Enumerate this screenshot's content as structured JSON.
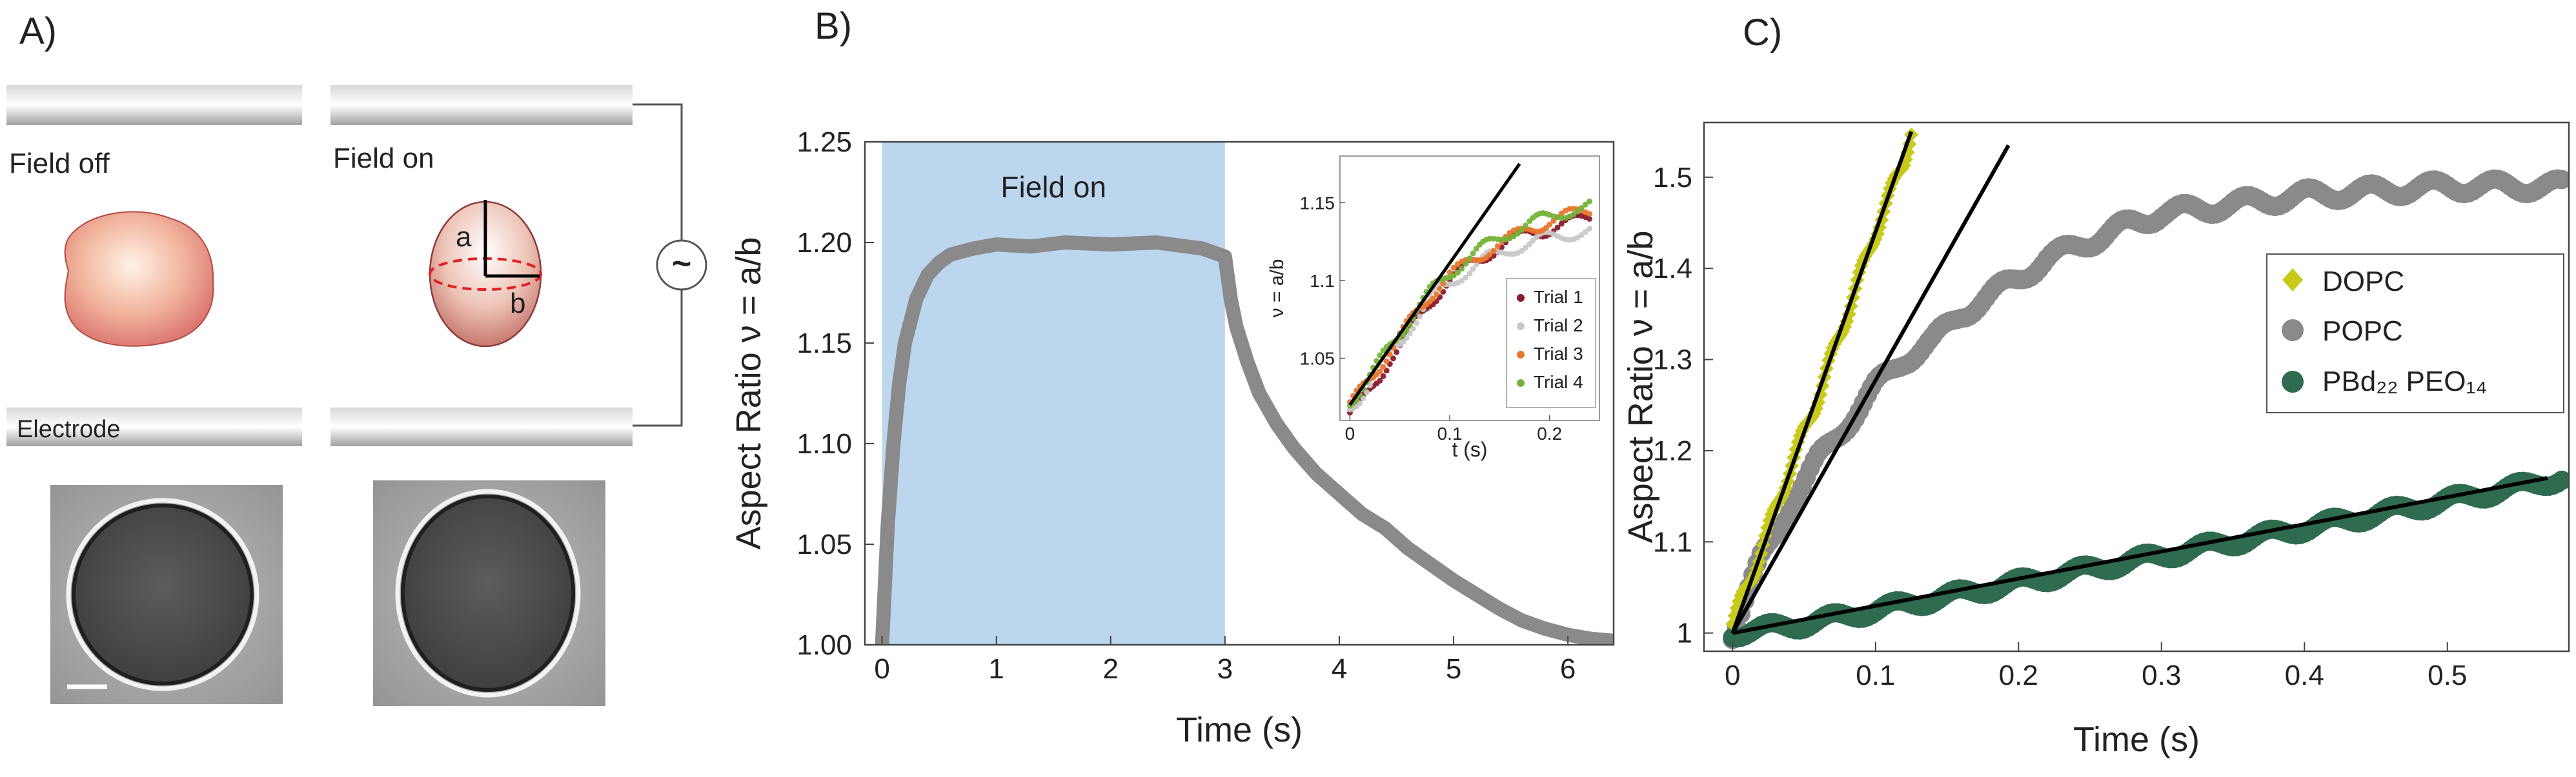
{
  "colors": {
    "field_shade": "#bcd6ee",
    "popc": "#8a8a8a",
    "dopc": "#c9c91a",
    "pbd": "#2e6b4f",
    "fit": "#000000",
    "trial1": "#8b1a2b",
    "trial2": "#c8c8c8",
    "trial3": "#e8772e",
    "trial4": "#74b43a",
    "dashed": "#e02020"
  },
  "panelA": {
    "label": "A)",
    "field_off": "Field off",
    "field_on": "Field on",
    "electrode": "Electrode",
    "axis_a": "a",
    "axis_b": "b",
    "ac_source_symbol": "~"
  },
  "panelB": {
    "label": "B)"
  },
  "panelC": {
    "label": "C)"
  },
  "chart_data": [
    {
      "id": "B-main",
      "type": "line",
      "xlabel": "Time (s)",
      "ylabel": "Aspect Ratio ν = a/b",
      "xlim": [
        -0.15,
        6.4
      ],
      "ylim": [
        1.0,
        1.25
      ],
      "xticks": [
        0,
        1,
        2,
        3,
        4,
        5,
        6
      ],
      "yticks": [
        1.0,
        1.05,
        1.1,
        1.15,
        1.2,
        1.25
      ],
      "ytick_labels": [
        "1.00",
        "1.05",
        "1.10",
        "1.15",
        "1.20",
        "1.25"
      ],
      "shaded_region": {
        "x": [
          0,
          3
        ],
        "label": "Field on"
      },
      "series": [
        {
          "name": "aspect ratio",
          "color": "#8a8a8a",
          "x": [
            0.0,
            0.05,
            0.1,
            0.15,
            0.2,
            0.3,
            0.4,
            0.5,
            0.6,
            0.8,
            1.0,
            1.3,
            1.6,
            2.0,
            2.4,
            2.8,
            3.0,
            3.05,
            3.1,
            3.2,
            3.3,
            3.45,
            3.6,
            3.8,
            4.0,
            4.2,
            4.4,
            4.6,
            4.8,
            5.0,
            5.2,
            5.4,
            5.6,
            5.8,
            6.0,
            6.2,
            6.4
          ],
          "y": [
            1.0,
            1.06,
            1.1,
            1.13,
            1.15,
            1.172,
            1.184,
            1.19,
            1.194,
            1.197,
            1.199,
            1.198,
            1.2,
            1.199,
            1.2,
            1.197,
            1.193,
            1.172,
            1.158,
            1.14,
            1.125,
            1.11,
            1.098,
            1.085,
            1.075,
            1.065,
            1.058,
            1.048,
            1.04,
            1.032,
            1.025,
            1.018,
            1.012,
            1.008,
            1.005,
            1.003,
            1.002
          ]
        }
      ]
    },
    {
      "id": "B-inset",
      "type": "scatter",
      "xlabel": "t (s)",
      "ylabel": "ν = a/b",
      "xlim": [
        -0.01,
        0.25
      ],
      "ylim": [
        1.01,
        1.18
      ],
      "xticks": [
        0,
        0.1,
        0.2
      ],
      "yticks": [
        1.05,
        1.1,
        1.15
      ],
      "xtick_labels": [
        "0",
        "0.1",
        "0.2"
      ],
      "ytick_labels": [
        "1.05",
        "1.1",
        "1.15"
      ],
      "legend": [
        "Trial 1",
        "Trial 2",
        "Trial 3",
        "Trial 4"
      ],
      "fit_line": {
        "x": [
          0,
          0.17
        ],
        "y": [
          1.02,
          1.175
        ]
      },
      "series": [
        {
          "name": "Trial 1",
          "color": "#8b1a2b",
          "x": [
            0.0,
            0.01,
            0.02,
            0.03,
            0.04,
            0.05,
            0.06,
            0.07,
            0.08,
            0.09,
            0.1,
            0.12,
            0.14,
            0.16,
            0.18,
            0.2,
            0.22,
            0.24
          ],
          "y": [
            1.015,
            1.02,
            1.028,
            1.038,
            1.05,
            1.058,
            1.067,
            1.077,
            1.086,
            1.093,
            1.1,
            1.11,
            1.118,
            1.125,
            1.13,
            1.133,
            1.137,
            1.14
          ]
        },
        {
          "name": "Trial 2",
          "color": "#c8c8c8",
          "x": [
            0.0,
            0.01,
            0.02,
            0.03,
            0.04,
            0.05,
            0.06,
            0.07,
            0.08,
            0.09,
            0.1,
            0.12,
            0.14,
            0.16,
            0.18,
            0.2,
            0.22,
            0.24
          ],
          "y": [
            1.018,
            1.025,
            1.034,
            1.042,
            1.052,
            1.06,
            1.07,
            1.078,
            1.087,
            1.094,
            1.099,
            1.107,
            1.115,
            1.12,
            1.124,
            1.128,
            1.13,
            1.132
          ]
        },
        {
          "name": "Trial 3",
          "color": "#e8772e",
          "x": [
            0.0,
            0.01,
            0.02,
            0.03,
            0.04,
            0.05,
            0.06,
            0.07,
            0.08,
            0.09,
            0.1,
            0.12,
            0.14,
            0.16,
            0.18,
            0.2,
            0.22,
            0.24
          ],
          "y": [
            1.02,
            1.028,
            1.036,
            1.045,
            1.055,
            1.064,
            1.073,
            1.082,
            1.09,
            1.097,
            1.103,
            1.112,
            1.12,
            1.127,
            1.133,
            1.138,
            1.142,
            1.145
          ]
        },
        {
          "name": "Trial 4",
          "color": "#74b43a",
          "x": [
            0.0,
            0.01,
            0.02,
            0.03,
            0.04,
            0.05,
            0.06,
            0.07,
            0.08,
            0.09,
            0.1,
            0.12,
            0.14,
            0.16,
            0.18,
            0.2,
            0.22,
            0.24
          ],
          "y": [
            1.022,
            1.03,
            1.039,
            1.048,
            1.057,
            1.066,
            1.075,
            1.084,
            1.092,
            1.099,
            1.105,
            1.115,
            1.124,
            1.131,
            1.137,
            1.141,
            1.145,
            1.148
          ]
        }
      ]
    },
    {
      "id": "C",
      "type": "scatter",
      "xlabel": "Time (s)",
      "ylabel": "Aspect Ratio ν = a/b",
      "xlim": [
        -0.02,
        0.585
      ],
      "ylim": [
        0.98,
        1.56
      ],
      "xticks": [
        0,
        0.1,
        0.2,
        0.3,
        0.4,
        0.5
      ],
      "xtick_labels": [
        "0",
        "0.1",
        "0.2",
        "0.3",
        "0.4",
        "0.5"
      ],
      "yticks": [
        1.0,
        1.1,
        1.2,
        1.3,
        1.4,
        1.5
      ],
      "ytick_labels": [
        "1",
        "1.1",
        "1.2",
        "1.3",
        "1.4",
        "1.5"
      ],
      "legend": [
        "DOPC",
        "POPC",
        "PBd₂₂ PEO₁₄"
      ],
      "fit_lines": [
        {
          "for": "DOPC",
          "x": [
            0,
            0.125
          ],
          "y": [
            1.0,
            1.55
          ]
        },
        {
          "for": "POPC",
          "x": [
            0,
            0.193
          ],
          "y": [
            1.0,
            1.535
          ]
        },
        {
          "for": "PBd22 PEO14",
          "x": [
            0,
            0.57
          ],
          "y": [
            1.0,
            1.17
          ]
        }
      ],
      "series": [
        {
          "name": "DOPC",
          "color": "#c9c91a",
          "marker": "diamond",
          "x": [
            0.0,
            0.02,
            0.04,
            0.06,
            0.08,
            0.1,
            0.12,
            0.125
          ],
          "y": [
            1.01,
            1.09,
            1.18,
            1.26,
            1.35,
            1.44,
            1.52,
            1.55
          ]
        },
        {
          "name": "POPC",
          "color": "#8a8a8a",
          "marker": "circle",
          "x": [
            0.0,
            0.02,
            0.04,
            0.06,
            0.08,
            0.1,
            0.12,
            0.14,
            0.16,
            0.18,
            0.2,
            0.22,
            0.25,
            0.28,
            0.3,
            0.35,
            0.4,
            0.45,
            0.5,
            0.55,
            0.58
          ],
          "y": [
            1.0,
            1.08,
            1.14,
            1.19,
            1.23,
            1.27,
            1.3,
            1.32,
            1.35,
            1.37,
            1.39,
            1.41,
            1.43,
            1.45,
            1.46,
            1.47,
            1.48,
            1.485,
            1.49,
            1.49,
            1.49
          ]
        },
        {
          "name": "PBd22 PEO14",
          "color": "#2e6b4f",
          "marker": "circle",
          "x": [
            0.0,
            0.05,
            0.1,
            0.15,
            0.2,
            0.25,
            0.3,
            0.35,
            0.4,
            0.45,
            0.5,
            0.55,
            0.58
          ],
          "y": [
            1.0,
            1.01,
            1.025,
            1.04,
            1.055,
            1.07,
            1.085,
            1.1,
            1.115,
            1.13,
            1.145,
            1.16,
            1.17
          ]
        }
      ]
    }
  ]
}
